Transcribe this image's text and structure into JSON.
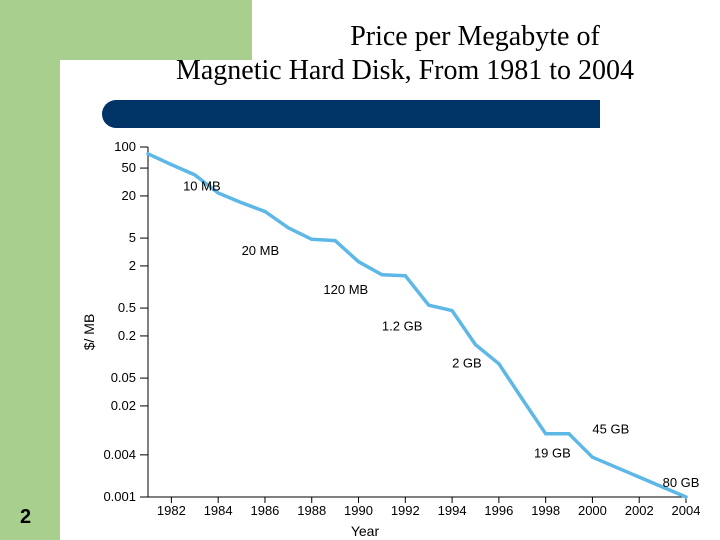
{
  "slide": {
    "title_line1": "Price per Megabyte of",
    "title_line2": "Magnetic Hard Disk, From 1981 to 2004",
    "number": "2"
  },
  "colors": {
    "band": "#a9cf8f",
    "title_bar": "#003366",
    "line": "#5db8e8"
  },
  "chart_data": {
    "type": "line",
    "title": "Price per Megabyte of Magnetic Hard Disk, From 1981 to 2004",
    "xlabel": "Year",
    "ylabel": "$/ MB",
    "yscale": "log",
    "xlim": [
      1981,
      2004
    ],
    "ylim": [
      0.001,
      100
    ],
    "x_ticks": [
      1982,
      1984,
      1986,
      1988,
      1990,
      1992,
      1994,
      1996,
      1998,
      2000,
      2002,
      2004
    ],
    "y_ticks": [
      100,
      50,
      20,
      5,
      2,
      0.5,
      0.2,
      0.05,
      0.02,
      0.004,
      0.001
    ],
    "y_tick_labels": [
      "100",
      "50",
      "20",
      "5",
      "2",
      "0.5",
      "0.2",
      "0.05",
      "0.02",
      "0.004",
      "0.001"
    ],
    "series": [
      {
        "name": "Price per MB",
        "x": [
          1981,
          1982,
          1983,
          1984,
          1985,
          1986,
          1987,
          1988,
          1989,
          1990,
          1991,
          1992,
          1993,
          1994,
          1995,
          1996,
          1997,
          1998,
          1999,
          2000,
          2004
        ],
        "values": [
          80,
          56,
          40,
          22,
          16,
          12,
          7,
          4.8,
          4.6,
          2.3,
          1.5,
          1.45,
          0.55,
          0.46,
          0.15,
          0.08,
          0.025,
          0.008,
          0.008,
          0.0037,
          0.001
        ]
      }
    ],
    "annotations": [
      {
        "text": "10 MB",
        "x": 1982.5,
        "y": 28
      },
      {
        "text": "20 MB",
        "x": 1985,
        "y": 3.4
      },
      {
        "text": "120 MB",
        "x": 1988.5,
        "y": 0.94
      },
      {
        "text": "1.2 GB",
        "x": 1991,
        "y": 0.28
      },
      {
        "text": "2 GB",
        "x": 1994,
        "y": 0.083
      },
      {
        "text": "19 GB",
        "x": 1997.5,
        "y": 0.0043
      },
      {
        "text": "45 GB",
        "x": 2000,
        "y": 0.0095
      },
      {
        "text": "80 GB",
        "x": 2003,
        "y": 0.00165
      }
    ],
    "grid": false,
    "legend": "none"
  }
}
